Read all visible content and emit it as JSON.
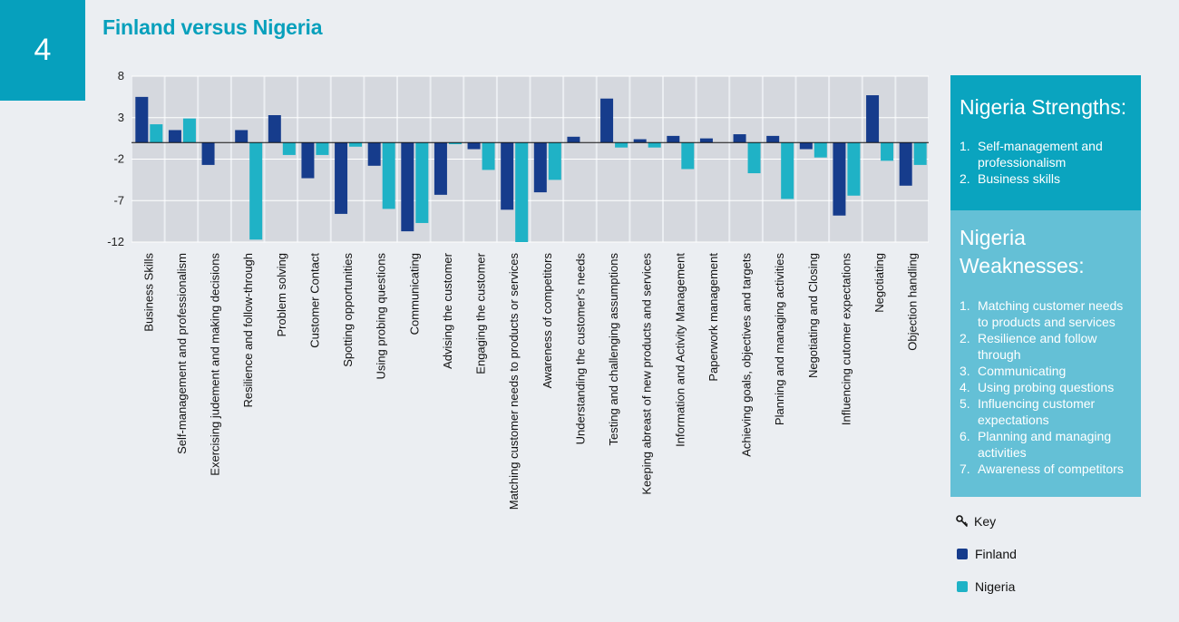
{
  "header": {
    "page_number": "4",
    "title": "Finland versus Nigeria"
  },
  "strengths": {
    "title": "Nigeria Strengths:",
    "items": [
      {
        "num": "1.",
        "text": "Self-management and professionalism"
      },
      {
        "num": "2.",
        "text": "Business skills"
      }
    ]
  },
  "weaknesses": {
    "title": "Nigeria Weaknesses:",
    "items": [
      {
        "num": "1.",
        "text": "Matching customer needs to products and services"
      },
      {
        "num": "2.",
        "text": "Resilience and follow through"
      },
      {
        "num": "3.",
        "text": "Communicating"
      },
      {
        "num": "4.",
        "text": "Using probing questions"
      },
      {
        "num": "5.",
        "text": "Influencing customer expectations"
      },
      {
        "num": "6.",
        "text": "Planning and managing activities"
      },
      {
        "num": "7.",
        "text": "Awareness of competitors"
      }
    ]
  },
  "key": {
    "title": "Key",
    "icon": "key-icon"
  },
  "colors": {
    "finland": "#163c8c",
    "nigeria": "#1fb2c6",
    "plot_bg": "#d5d8de",
    "accent": "#06a0bd"
  },
  "chart_data": {
    "type": "bar",
    "title": "Finland versus Nigeria",
    "xlabel": "",
    "ylabel": "",
    "ylim": [
      -12,
      8
    ],
    "yticks": [
      8,
      3,
      -2,
      -7,
      -12
    ],
    "grid": true,
    "legend": "right",
    "categories": [
      "Business Skills",
      "Self-management and professionalism",
      "Exercising judement and making decisions",
      "Resilience and follow-through",
      "Problem solving",
      "Customer Contact",
      "Spotting opportunities",
      "Using probing questions",
      "Communicating",
      "Advising the customer",
      "Engaging the customer",
      "Matching customer needs to products or services",
      "Awareness of competitors",
      "Understanding the customer's needs",
      "Testing and challenging assumptions",
      "Keeping abreast of new products and services",
      "Information and Activity Management",
      "Paperwork management",
      "Achieving goals, objectives and targets",
      "Planning and managing activities",
      "Negotiating and Closing",
      "Influencing cutomer expectations",
      "Negotiating",
      "Objection handling"
    ],
    "series": [
      {
        "name": "Finland",
        "values": [
          5.5,
          1.5,
          -2.7,
          1.5,
          3.3,
          -4.3,
          -8.6,
          -2.8,
          -10.7,
          -6.3,
          -0.8,
          -8.1,
          -6.0,
          0.7,
          5.3,
          0.4,
          0.8,
          0.5,
          1.0,
          0.8,
          -0.8,
          -8.8,
          5.7,
          -5.2
        ]
      },
      {
        "name": "Nigeria",
        "values": [
          2.2,
          2.9,
          0.0,
          -11.7,
          -1.5,
          -1.5,
          -0.5,
          -8.0,
          -9.7,
          -0.2,
          -3.3,
          -12.0,
          -4.5,
          0.0,
          -0.6,
          -0.6,
          -3.2,
          0.0,
          -3.7,
          -6.8,
          -1.8,
          -6.4,
          -2.2,
          -2.7
        ]
      }
    ]
  }
}
